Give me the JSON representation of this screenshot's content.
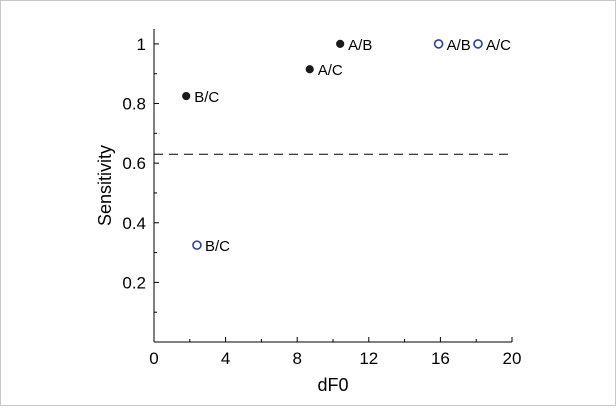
{
  "chart_data": {
    "type": "scatter",
    "xlabel": "dF0",
    "ylabel": "Sensitivity",
    "xlim": [
      0,
      20
    ],
    "ylim": [
      0,
      1.05
    ],
    "xticks": [
      "0",
      "4",
      "8",
      "12",
      "16",
      "20"
    ],
    "xtick_values": [
      0,
      4,
      8,
      12,
      16,
      20
    ],
    "yticks": [
      "0.2",
      "0.4",
      "0.6",
      "0.8",
      "1"
    ],
    "ytick_values": [
      0.2,
      0.4,
      0.6,
      0.8,
      1.0
    ],
    "grid": false,
    "threshold": {
      "y": 0.63,
      "style": "dashed"
    },
    "series": [
      {
        "marker": "filled-circle",
        "color": "#1a1a1a",
        "points": [
          {
            "x": 1.8,
            "y": 0.825,
            "label": "B/C"
          },
          {
            "x": 8.7,
            "y": 0.915,
            "label": "A/C"
          },
          {
            "x": 10.4,
            "y": 1.0,
            "label": "A/B"
          }
        ]
      },
      {
        "marker": "open-circle",
        "color": "#2b3f9e",
        "points": [
          {
            "x": 2.4,
            "y": 0.325,
            "label": "B/C"
          },
          {
            "x": 15.9,
            "y": 1.0,
            "label": "A/B"
          },
          {
            "x": 18.1,
            "y": 1.0,
            "label": "A/C"
          }
        ]
      }
    ]
  }
}
